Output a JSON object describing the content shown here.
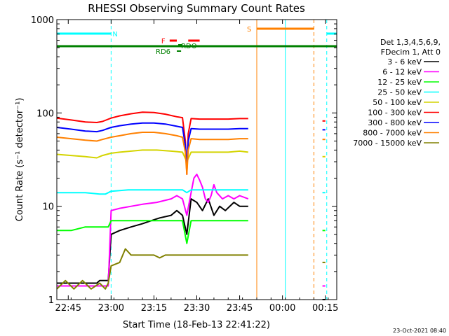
{
  "chart_data": {
    "type": "line",
    "title": "RHESSI Observing Summary Count Rates",
    "xlabel": "Start Time (18-Feb-13 22:41:22)",
    "ylabel": "Count Rate (s⁻¹ detector⁻¹)",
    "yscale": "log",
    "xlim_minutes_from_2241": [
      0,
      98
    ],
    "ylim": [
      1,
      1000
    ],
    "x_tick_labels": [
      "22:45",
      "23:00",
      "23:15",
      "23:30",
      "23:45",
      "00:00",
      "00:15"
    ],
    "x_tick_minutes": [
      4,
      19,
      34,
      49,
      64,
      79,
      94
    ],
    "y_tick_labels": [
      "1",
      "10",
      "100",
      "1000"
    ],
    "y_tick_values": [
      1,
      10,
      100,
      1000
    ],
    "legend_header": [
      "Det 1,3,4,5,6,9,",
      "FDecim 1, Att 0"
    ],
    "legend_position": "right",
    "series": [
      {
        "name": "3 - 6 keV",
        "color": "#000000",
        "segments": [
          {
            "x": [
              0,
              6,
              10,
              14,
              15,
              18,
              19,
              22,
              26,
              30,
              33,
              36,
              40,
              42,
              44,
              45.5,
              47,
              49,
              51,
              53,
              55,
              57,
              59,
              62,
              64,
              67
            ],
            "y": [
              1.5,
              1.5,
              1.5,
              1.5,
              1.6,
              1.6,
              5,
              5.5,
              6,
              6.5,
              7,
              7.5,
              8,
              9,
              8,
              5,
              12,
              11,
              9,
              12,
              8,
              10,
              9,
              11,
              10,
              10
            ]
          },
          {
            "x": [
              93,
              94
            ],
            "y": [
              1,
              1
            ]
          }
        ]
      },
      {
        "name": "6 - 12 keV",
        "color": "#ff00ff",
        "segments": [
          {
            "x": [
              0,
              10,
              15,
              18,
              19,
              22,
              26,
              30,
              35,
              40,
              42,
              44,
              45.5,
              47,
              48,
              49,
              50,
              51,
              52,
              53,
              54,
              55,
              56,
              58,
              60,
              62,
              64,
              67
            ],
            "y": [
              1.4,
              1.4,
              1.4,
              1.4,
              9,
              9.5,
              10,
              10.5,
              11,
              12,
              13,
              12,
              8,
              14,
              20,
              22,
              19,
              16,
              12,
              11,
              13,
              17,
              14,
              12,
              13,
              12,
              13,
              12
            ]
          },
          {
            "x": [
              93,
              94
            ],
            "y": [
              1.4,
              1.4
            ]
          }
        ]
      },
      {
        "name": "12 - 25 keV",
        "color": "#00ff00",
        "segments": [
          {
            "x": [
              0,
              5,
              10,
              15,
              18,
              19,
              25,
              30,
              35,
              40,
              44,
              45.5,
              47,
              50,
              55,
              60,
              64,
              67
            ],
            "y": [
              5.5,
              5.5,
              6,
              6,
              6,
              7,
              7,
              7,
              7,
              7,
              7,
              4,
              7,
              7,
              7,
              7,
              7,
              7
            ]
          },
          {
            "x": [
              93,
              94
            ],
            "y": [
              5.5,
              5.5
            ]
          }
        ]
      },
      {
        "name": "25 - 50 keV",
        "color": "#00ffff",
        "segments": [
          {
            "x": [
              0,
              5,
              10,
              15,
              17,
              19,
              25,
              30,
              35,
              40,
              44,
              45.5,
              47,
              50,
              55,
              60,
              64,
              67
            ],
            "y": [
              14,
              14,
              14,
              13.5,
              13.5,
              14.5,
              15,
              15,
              15,
              15,
              15,
              14,
              15,
              15,
              15,
              15,
              15,
              15
            ]
          },
          {
            "x": [
              93,
              94
            ],
            "y": [
              14,
              14
            ]
          }
        ]
      },
      {
        "name": "50 - 100 keV",
        "color": "#d4d400",
        "segments": [
          {
            "x": [
              0,
              5,
              10,
              14,
              16,
              19,
              22,
              26,
              30,
              35,
              40,
              44,
              45.5,
              47,
              50,
              55,
              60,
              64,
              67
            ],
            "y": [
              36,
              35,
              34,
              33,
              35,
              37,
              38,
              39,
              40,
              40,
              39,
              38,
              30,
              38,
              38,
              38,
              38,
              39,
              38
            ]
          },
          {
            "x": [
              93,
              94
            ],
            "y": [
              34,
              34
            ]
          }
        ]
      },
      {
        "name": "100 - 300 keV",
        "color": "#ff0000",
        "segments": [
          {
            "x": [
              0,
              5,
              10,
              14,
              16,
              19,
              22,
              26,
              30,
              34,
              38,
              42,
              44,
              45,
              45.5,
              46,
              47,
              50,
              55,
              60,
              64,
              67
            ],
            "y": [
              88,
              84,
              80,
              79,
              81,
              88,
              93,
              98,
              102,
              101,
              97,
              91,
              89,
              50,
              22,
              60,
              87,
              86,
              86,
              86,
              87,
              87
            ]
          },
          {
            "x": [
              93,
              94
            ],
            "y": [
              82,
              82
            ]
          }
        ]
      },
      {
        "name": "300 - 800 keV",
        "color": "#0000ff",
        "segments": [
          {
            "x": [
              0,
              5,
              10,
              14,
              16,
              19,
              22,
              26,
              30,
              34,
              38,
              42,
              44,
              45,
              45.5,
              46,
              47,
              50,
              55,
              60,
              64,
              67
            ],
            "y": [
              70,
              67,
              64,
              63,
              65,
              70,
              73,
              76,
              78,
              78,
              76,
              72,
              70,
              45,
              25,
              50,
              68,
              67,
              67,
              67,
              68,
              68
            ]
          },
          {
            "x": [
              93,
              94
            ],
            "y": [
              66,
              66
            ]
          }
        ]
      },
      {
        "name": "800 - 7000 keV",
        "color": "#ff8000",
        "segments": [
          {
            "x": [
              0,
              5,
              10,
              14,
              16,
              19,
              22,
              26,
              30,
              34,
              38,
              42,
              44,
              45,
              45.5,
              46,
              47,
              50,
              55,
              60,
              64,
              67
            ],
            "y": [
              55,
              53,
              51,
              50,
              52,
              55,
              57,
              60,
              62,
              62,
              60,
              57,
              55,
              38,
              22,
              40,
              53,
              52,
              52,
              52,
              53,
              53
            ]
          },
          {
            "x": [
              93,
              94
            ],
            "y": [
              52,
              52
            ]
          }
        ]
      },
      {
        "name": "7000 - 15000 keV",
        "color": "#808000",
        "segments": [
          {
            "x": [
              0,
              3,
              6,
              9,
              12,
              15,
              17,
              18,
              19,
              22,
              24,
              26,
              30,
              32,
              34,
              36,
              38,
              40,
              44,
              46,
              50,
              55,
              60,
              64,
              67
            ],
            "y": [
              1.3,
              1.6,
              1.3,
              1.6,
              1.3,
              1.5,
              1.3,
              1.5,
              2.3,
              2.5,
              3.5,
              3,
              3,
              3,
              3,
              2.8,
              3,
              3,
              3,
              3,
              3,
              3,
              3,
              3,
              3
            ]
          },
          {
            "x": [
              93,
              94
            ],
            "y": [
              2.5,
              2.5
            ]
          }
        ]
      }
    ],
    "annotations": {
      "N_label": "N",
      "S_label": "S",
      "F_label": "F",
      "RDO_label": "RDO",
      "RD6_label": "RD6"
    }
  },
  "timestamp": "23-Oct-2021 08:40"
}
